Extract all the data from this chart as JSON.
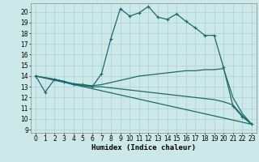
{
  "xlabel": "Humidex (Indice chaleur)",
  "background_color": "#cde8e8",
  "grid_color": "#aad0d0",
  "line_color": "#1a6b6b",
  "xlim": [
    -0.5,
    23.5
  ],
  "ylim": [
    8.7,
    20.8
  ],
  "yticks": [
    9,
    10,
    11,
    12,
    13,
    14,
    15,
    16,
    17,
    18,
    19,
    20
  ],
  "xticks": [
    0,
    1,
    2,
    3,
    4,
    5,
    6,
    7,
    8,
    9,
    10,
    11,
    12,
    13,
    14,
    15,
    16,
    17,
    18,
    19,
    20,
    21,
    22,
    23
  ],
  "series": [
    {
      "x": [
        0,
        1,
        2,
        3,
        4,
        5,
        6,
        7,
        8,
        9,
        10,
        11,
        12,
        13,
        14,
        15,
        16,
        17,
        18,
        19,
        20,
        21,
        22,
        23
      ],
      "y": [
        14.0,
        12.5,
        13.7,
        13.5,
        13.2,
        13.2,
        13.0,
        14.2,
        17.5,
        20.3,
        19.6,
        19.9,
        20.5,
        19.5,
        19.3,
        19.8,
        19.1,
        18.5,
        17.8,
        17.8,
        14.8,
        11.2,
        10.2,
        9.5
      ],
      "style": "-",
      "marker": "+",
      "markersize": 3,
      "linewidth": 0.9
    },
    {
      "x": [
        0,
        2,
        3,
        4,
        5,
        6,
        7,
        8,
        9,
        10,
        11,
        12,
        13,
        14,
        15,
        16,
        17,
        18,
        19,
        20,
        21,
        22,
        23
      ],
      "y": [
        14.0,
        13.7,
        13.5,
        13.3,
        13.2,
        13.1,
        13.2,
        13.4,
        13.6,
        13.8,
        14.0,
        14.1,
        14.2,
        14.3,
        14.4,
        14.5,
        14.5,
        14.6,
        14.6,
        14.7,
        12.0,
        10.5,
        9.5
      ],
      "style": "-",
      "marker": null,
      "markersize": 0,
      "linewidth": 0.9
    },
    {
      "x": [
        0,
        23
      ],
      "y": [
        14.0,
        9.5
      ],
      "style": "-",
      "marker": null,
      "markersize": 0,
      "linewidth": 0.9
    },
    {
      "x": [
        0,
        2,
        3,
        4,
        5,
        6,
        7,
        8,
        9,
        10,
        11,
        12,
        13,
        14,
        15,
        16,
        17,
        18,
        19,
        20,
        21,
        22,
        23
      ],
      "y": [
        14.0,
        13.7,
        13.5,
        13.2,
        13.1,
        13.0,
        13.0,
        12.9,
        12.8,
        12.7,
        12.6,
        12.5,
        12.4,
        12.3,
        12.2,
        12.1,
        12.0,
        11.9,
        11.8,
        11.6,
        11.3,
        10.3,
        9.5
      ],
      "style": "-",
      "marker": null,
      "markersize": 0,
      "linewidth": 0.9
    }
  ]
}
